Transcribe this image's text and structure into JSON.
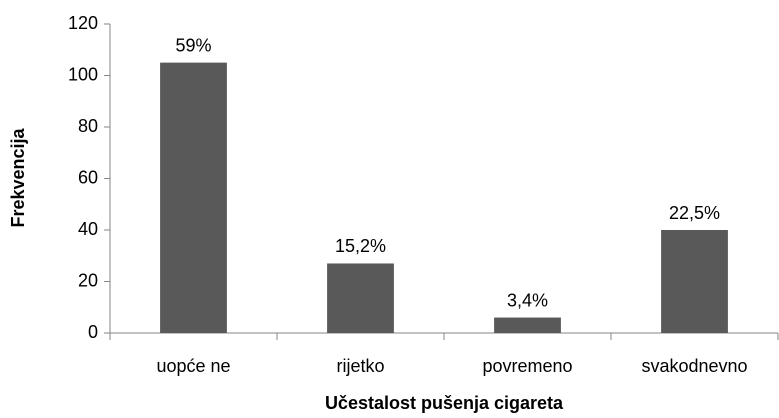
{
  "chart_data": {
    "type": "bar",
    "x_label": "Učestalost pušenja cigareta",
    "y_label": "Frekvencija",
    "categories": [
      "uopće ne",
      "rijetko",
      "povremeno",
      "svakodnevno"
    ],
    "values": [
      105,
      27,
      6,
      40
    ],
    "annotations": [
      "59%",
      "15,2%",
      "3,4%",
      "22,5%"
    ],
    "color": "#595959",
    "ylim": [
      0,
      120
    ],
    "yticks": [
      0,
      20,
      40,
      60,
      80,
      100,
      120
    ],
    "grid": false
  }
}
